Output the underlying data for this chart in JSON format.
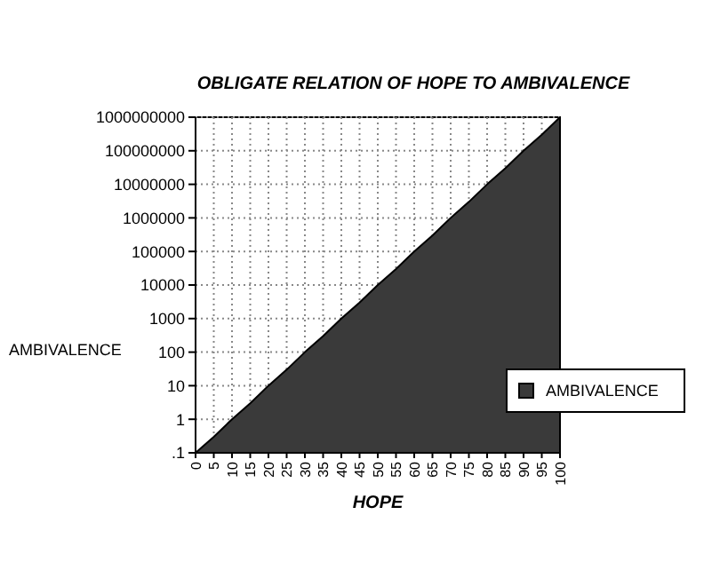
{
  "chart_data": {
    "type": "area",
    "title": "OBLIGATE RELATION OF HOPE TO AMBIVALENCE",
    "xlabel": "HOPE",
    "ylabel": "AMBIVALENCE",
    "categories": [
      "0",
      "5",
      "10",
      "15",
      "20",
      "25",
      "30",
      "35",
      "40",
      "45",
      "50",
      "55",
      "60",
      "65",
      "70",
      "75",
      "80",
      "85",
      "90",
      "95",
      "100"
    ],
    "series": [
      {
        "name": "AMBIVALENCE",
        "color": "#3a3a3a",
        "values": [
          0.1,
          0.3,
          1,
          3,
          10,
          30,
          100,
          300,
          1000,
          3000,
          10000,
          30000,
          100000,
          300000,
          1000000,
          3000000,
          10000000,
          30000000,
          100000000,
          300000000,
          1000000000
        ]
      }
    ],
    "log": "y",
    "ylim": [
      0.1,
      1000000000
    ],
    "yticks": [
      {
        "value": 0.1,
        "label": ".1"
      },
      1,
      10,
      100,
      1000,
      10000,
      100000,
      1000000,
      10000000,
      100000000,
      1000000000
    ],
    "grid": true,
    "legend": "right"
  }
}
